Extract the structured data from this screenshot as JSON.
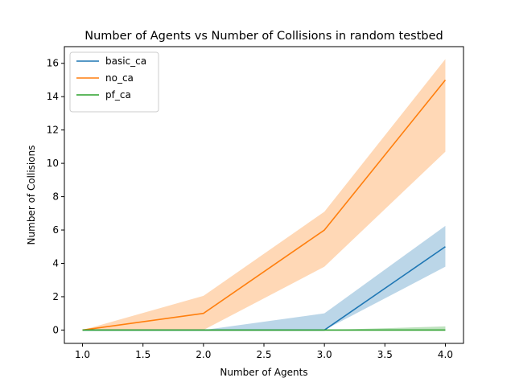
{
  "chart_data": {
    "type": "line",
    "title": "Number of Agents vs Number of Collisions in random testbed",
    "xlabel": "Number of Agents",
    "ylabel": "Number of Collisions",
    "xlim": [
      0.85,
      4.15
    ],
    "ylim": [
      -0.8,
      17.0
    ],
    "x": [
      1.0,
      2.0,
      3.0,
      4.0
    ],
    "xticks": [
      "1.0",
      "1.5",
      "2.0",
      "2.5",
      "3.0",
      "3.5",
      "4.0"
    ],
    "yticks": [
      "0",
      "2",
      "4",
      "6",
      "8",
      "10",
      "12",
      "14",
      "16"
    ],
    "grid": false,
    "legend_position": "top-left",
    "series": [
      {
        "name": "basic_ca",
        "color": "#1f77b4",
        "values": [
          0,
          0,
          0,
          5
        ],
        "band_lower": [
          0,
          0,
          0,
          3.8
        ],
        "band_upper": [
          0,
          0,
          1.0,
          6.25
        ]
      },
      {
        "name": "no_ca",
        "color": "#ff7f0e",
        "values": [
          0,
          1,
          6,
          15
        ],
        "band_lower": [
          0,
          0,
          3.8,
          10.7
        ],
        "band_upper": [
          0,
          2.05,
          7.1,
          16.25
        ]
      },
      {
        "name": "pf_ca",
        "color": "#2ca02c",
        "values": [
          0,
          0,
          0,
          0
        ],
        "band_lower": [
          0,
          0,
          0,
          0
        ],
        "band_upper": [
          0,
          0,
          0,
          0.22
        ]
      }
    ]
  }
}
